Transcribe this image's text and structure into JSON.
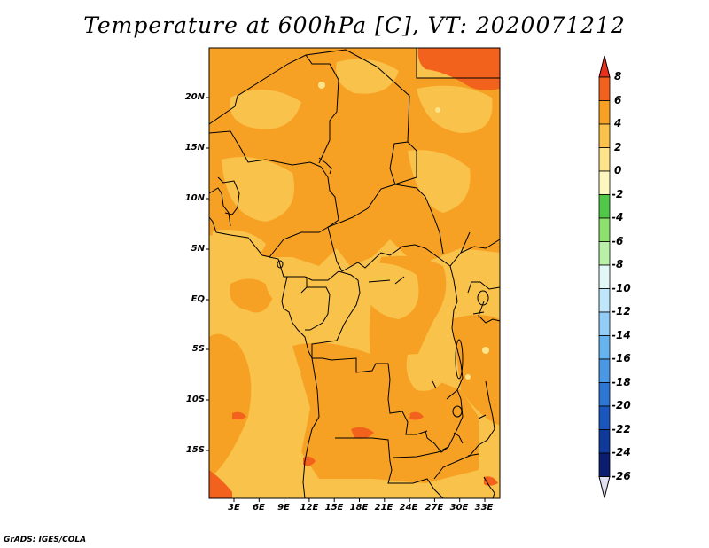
{
  "title": "Temperature at 600hPa [C], VT: 2020071212",
  "credit": "GrADS: IGES/COLA",
  "lat_labels": [
    "20N",
    "15N",
    "10N",
    "5N",
    "EQ",
    "5S",
    "10S",
    "15S"
  ],
  "lon_labels": [
    "3E",
    "6E",
    "9E",
    "12E",
    "15E",
    "18E",
    "21E",
    "24E",
    "27E",
    "30E",
    "33E"
  ],
  "colorbar": {
    "labels": [
      "8",
      "6",
      "4",
      "2",
      "0",
      "-2",
      "-4",
      "-6",
      "-8",
      "-10",
      "-12",
      "-14",
      "-16",
      "-18",
      "-20",
      "-22",
      "-24",
      "-26"
    ],
    "colors": [
      "#e6301a",
      "#f2621c",
      "#f7a124",
      "#f9c24a",
      "#fde38a",
      "#fdf7c0",
      "#52c84a",
      "#8ee06e",
      "#b8f0a8",
      "#e2f8f6",
      "#bfe6fb",
      "#93cdf5",
      "#67b3ee",
      "#4a97e4",
      "#2d76d6",
      "#1a56bd",
      "#0f3a9c",
      "#0a1d6e",
      "#e0e0f2"
    ],
    "top_arrow_color": "#e6301a",
    "bottom_arrow_color": "#e0e0f2"
  },
  "field_colors": {
    "base": "#f9c24a",
    "warm": "#f7a124",
    "hot": "#f2621c",
    "border": "#000000"
  }
}
